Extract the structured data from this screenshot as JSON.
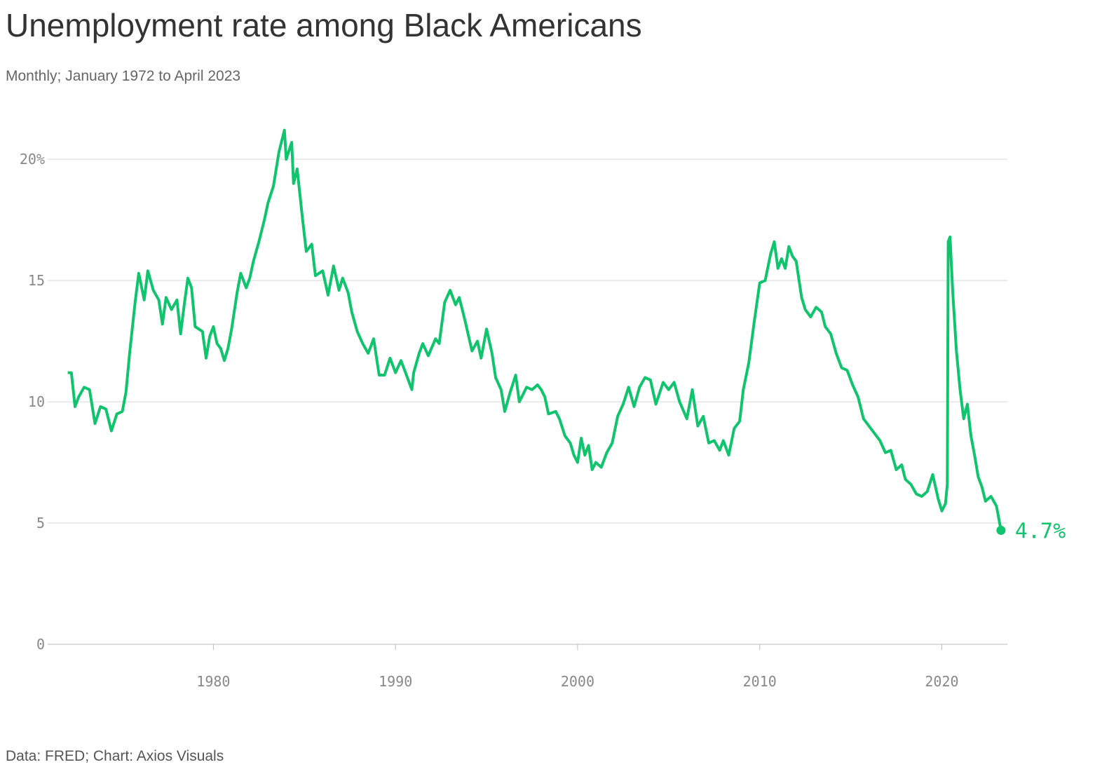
{
  "chart_data": {
    "type": "line",
    "title": "Unemployment rate among Black Americans",
    "subtitle": "Monthly; January 1972 to April 2023",
    "source": "Data: FRED; Chart: Axios Visuals",
    "end_label": "4.7%",
    "xlim": [
      1970.9,
      2023.6
    ],
    "xticks": [
      1980,
      1990,
      2000,
      2010,
      2020
    ],
    "ylim": [
      0,
      22
    ],
    "yticks": [
      0,
      5,
      10,
      15,
      {
        "value": 20,
        "label": "20%"
      }
    ],
    "grid": true,
    "x": [
      1972.0,
      1972.2,
      1972.4,
      1972.6,
      1972.9,
      1973.2,
      1973.5,
      1973.8,
      1974.1,
      1974.4,
      1974.7,
      1975.0,
      1975.2,
      1975.4,
      1975.7,
      1975.9,
      1976.2,
      1976.4,
      1976.7,
      1977.0,
      1977.2,
      1977.4,
      1977.7,
      1978.0,
      1978.2,
      1978.4,
      1978.6,
      1978.8,
      1979.0,
      1979.4,
      1979.6,
      1979.8,
      1980.0,
      1980.2,
      1980.4,
      1980.6,
      1980.8,
      1981.0,
      1981.3,
      1981.5,
      1981.8,
      1982.0,
      1982.2,
      1982.5,
      1982.8,
      1983.0,
      1983.3,
      1983.6,
      1983.9,
      1984.0,
      1984.3,
      1984.4,
      1984.6,
      1984.9,
      1985.1,
      1985.4,
      1985.6,
      1986.0,
      1986.3,
      1986.6,
      1986.9,
      1987.1,
      1987.4,
      1987.6,
      1987.9,
      1988.2,
      1988.5,
      1988.8,
      1989.1,
      1989.4,
      1989.7,
      1990.0,
      1990.3,
      1990.6,
      1990.9,
      1991.0,
      1991.3,
      1991.5,
      1991.8,
      1992.2,
      1992.4,
      1992.7,
      1993.0,
      1993.3,
      1993.5,
      1993.8,
      1994.2,
      1994.5,
      1994.7,
      1995.0,
      1995.3,
      1995.5,
      1995.8,
      1996.0,
      1996.3,
      1996.6,
      1996.8,
      1997.2,
      1997.5,
      1997.8,
      1998.0,
      1998.2,
      1998.4,
      1998.8,
      1999.0,
      1999.3,
      1999.6,
      1999.8,
      2000.0,
      2000.2,
      2000.4,
      2000.6,
      2000.8,
      2001.0,
      2001.3,
      2001.6,
      2001.9,
      2002.2,
      2002.5,
      2002.8,
      2003.1,
      2003.4,
      2003.7,
      2004.0,
      2004.3,
      2004.7,
      2005.0,
      2005.3,
      2005.6,
      2006.0,
      2006.3,
      2006.6,
      2006.9,
      2007.2,
      2007.5,
      2007.8,
      2008.0,
      2008.3,
      2008.6,
      2008.9,
      2009.1,
      2009.4,
      2009.7,
      2010.0,
      2010.3,
      2010.6,
      2010.8,
      2011.0,
      2011.2,
      2011.4,
      2011.6,
      2011.8,
      2012.0,
      2012.3,
      2012.5,
      2012.8,
      2013.1,
      2013.4,
      2013.6,
      2013.9,
      2014.2,
      2014.5,
      2014.8,
      2015.1,
      2015.4,
      2015.7,
      2016.0,
      2016.3,
      2016.6,
      2016.9,
      2017.2,
      2017.5,
      2017.8,
      2018.0,
      2018.3,
      2018.6,
      2018.9,
      2019.2,
      2019.5,
      2019.8,
      2020.0,
      2020.2,
      2020.3,
      2020.35,
      2020.45,
      2020.6,
      2020.8,
      2021.0,
      2021.2,
      2021.4,
      2021.6,
      2021.8,
      2022.0,
      2022.2,
      2022.4,
      2022.7,
      2023.0,
      2023.25
    ],
    "series": [
      {
        "name": "Unemployment rate",
        "color": "#10c46e",
        "values": [
          11.2,
          11.2,
          9.8,
          10.2,
          10.6,
          10.5,
          9.1,
          9.8,
          9.7,
          8.8,
          9.5,
          9.6,
          10.4,
          12.0,
          14.1,
          15.3,
          14.2,
          15.4,
          14.6,
          14.2,
          13.2,
          14.3,
          13.8,
          14.2,
          12.8,
          14.0,
          15.1,
          14.7,
          13.1,
          12.9,
          11.8,
          12.7,
          13.1,
          12.4,
          12.2,
          11.7,
          12.2,
          13.0,
          14.5,
          15.3,
          14.7,
          15.1,
          15.8,
          16.6,
          17.5,
          18.2,
          18.9,
          20.3,
          21.2,
          20.0,
          20.7,
          19.0,
          19.6,
          17.5,
          16.2,
          16.5,
          15.2,
          15.4,
          14.4,
          15.6,
          14.6,
          15.1,
          14.5,
          13.7,
          12.9,
          12.4,
          12.0,
          12.6,
          11.1,
          11.1,
          11.8,
          11.2,
          11.7,
          11.1,
          10.5,
          11.2,
          12.0,
          12.4,
          11.9,
          12.6,
          12.4,
          14.1,
          14.6,
          14.0,
          14.3,
          13.4,
          12.1,
          12.5,
          11.8,
          13.0,
          12.0,
          11.0,
          10.5,
          9.6,
          10.4,
          11.1,
          10.0,
          10.6,
          10.5,
          10.7,
          10.5,
          10.2,
          9.5,
          9.6,
          9.3,
          8.6,
          8.3,
          7.8,
          7.5,
          8.5,
          7.8,
          8.2,
          7.2,
          7.5,
          7.3,
          7.9,
          8.3,
          9.4,
          9.9,
          10.6,
          9.8,
          10.6,
          11.0,
          10.9,
          9.9,
          10.8,
          10.5,
          10.8,
          10.0,
          9.3,
          10.5,
          9.0,
          9.4,
          8.3,
          8.4,
          8.0,
          8.4,
          7.8,
          8.9,
          9.2,
          10.5,
          11.6,
          13.3,
          14.9,
          15.0,
          16.1,
          16.6,
          15.5,
          15.9,
          15.5,
          16.4,
          16.0,
          15.8,
          14.3,
          13.8,
          13.5,
          13.9,
          13.7,
          13.1,
          12.8,
          12.0,
          11.4,
          11.3,
          10.7,
          10.2,
          9.3,
          9.0,
          8.7,
          8.4,
          7.9,
          8.0,
          7.2,
          7.4,
          6.8,
          6.6,
          6.2,
          6.1,
          6.3,
          7.0,
          6.0,
          5.5,
          5.8,
          6.6,
          16.6,
          16.8,
          14.5,
          12.1,
          10.5,
          9.3,
          9.9,
          8.6,
          7.8,
          6.9,
          6.5,
          5.9,
          6.1,
          5.7,
          4.7
        ]
      }
    ]
  }
}
